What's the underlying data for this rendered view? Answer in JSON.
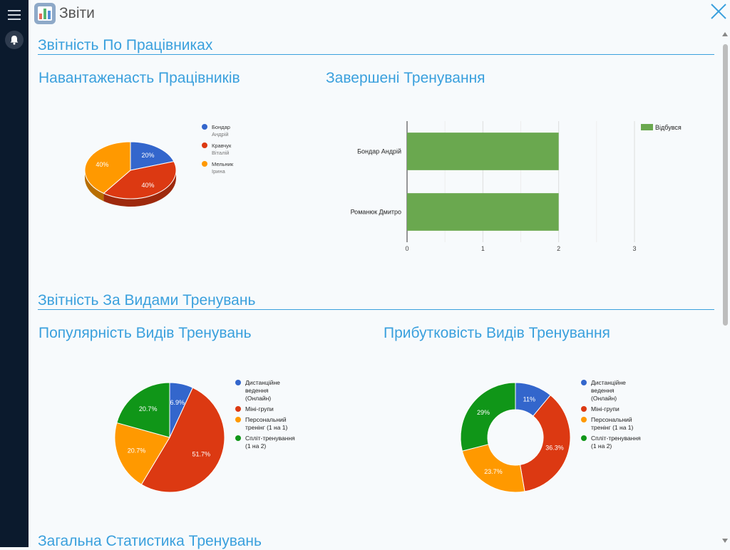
{
  "app": {
    "title": "Звіти"
  },
  "sections": {
    "employees": "Звітність По Працівниках",
    "training_types": "Звітність За Видами Тренувань",
    "general": "Загальна Статистика Тренувань"
  },
  "charts": {
    "workload": {
      "title": "Навантаженасть Працівників"
    },
    "completed": {
      "title": "Завершені Тренування"
    },
    "popularity": {
      "title": "Популярність Видів Тренувань"
    },
    "profitability": {
      "title": "Прибутковість Видів Тренування"
    }
  },
  "colors": {
    "blue": "#3366cc",
    "red": "#dc3912",
    "orange": "#ff9900",
    "green": "#109618",
    "bar_green": "#6aa84f",
    "accent": "#3aa0dd",
    "sidebar": "#0b1a2d"
  },
  "icons": {
    "menu": "hamburger-icon",
    "bell": "bell-icon",
    "close": "close-icon",
    "app": "bar-chart-icon"
  },
  "chart_data": [
    {
      "type": "pie",
      "title": "Навантаженасть Працівників",
      "categories": [
        "Бондар Андрій",
        "Кравчук Віталій",
        "Мельник Ірина"
      ],
      "values": [
        20,
        40,
        40
      ],
      "value_labels": [
        "20%",
        "40%",
        "40%"
      ],
      "colors": [
        "#3366cc",
        "#dc3912",
        "#ff9900"
      ],
      "legend_lines": [
        [
          "Бондар",
          "Андрій"
        ],
        [
          "Кравчук",
          "Віталій"
        ],
        [
          "Мельник",
          "Ірина"
        ]
      ],
      "legend": "right",
      "is3d": true
    },
    {
      "type": "bar",
      "orientation": "horizontal",
      "title": "Завершені Тренування",
      "categories": [
        "Бондар Андрій",
        "Романюк Дмитро"
      ],
      "series": [
        {
          "name": "Відбувся",
          "values": [
            2,
            2
          ],
          "color": "#6aa84f"
        }
      ],
      "xticks": [
        "0",
        "1",
        "2",
        "3"
      ],
      "xlim": [
        0,
        3
      ],
      "grid": true,
      "legend": "top-right"
    },
    {
      "type": "pie",
      "title": "Популярність Видів Тренувань",
      "categories": [
        "Дистанційне ведення (Онлайн)",
        "Міні-групи",
        "Персональний тренінг (1 на 1)",
        "Спліт-тренування (1 на 2)"
      ],
      "values": [
        6.9,
        51.7,
        20.7,
        20.7
      ],
      "value_labels": [
        "6.9%",
        "51.7%",
        "20.7%",
        "20.7%"
      ],
      "colors": [
        "#3366cc",
        "#dc3912",
        "#ff9900",
        "#109618"
      ],
      "legend_lines": [
        [
          "Дистанційне",
          "ведення",
          "(Онлайн)"
        ],
        [
          "Міні-групи"
        ],
        [
          "Персональний",
          "тренінг (1 на 1)"
        ],
        [
          "Спліт-тренування",
          "(1 на 2)"
        ]
      ],
      "legend": "right"
    },
    {
      "type": "pie",
      "donut": true,
      "title": "Прибутковість Видів Тренування",
      "categories": [
        "Дистанційне ведення (Онлайн)",
        "Міні-групи",
        "Персональний тренінг (1 на 1)",
        "Спліт-тренування (1 на 2)"
      ],
      "values": [
        11,
        36.3,
        23.7,
        29
      ],
      "value_labels": [
        "11%",
        "36.3%",
        "23.7%",
        "29%"
      ],
      "colors": [
        "#3366cc",
        "#dc3912",
        "#ff9900",
        "#109618"
      ],
      "legend_lines": [
        [
          "Дистанційне",
          "ведення",
          "(Онлайн)"
        ],
        [
          "Міні-групи"
        ],
        [
          "Персональний",
          "тренінг (1 на 1)"
        ],
        [
          "Спліт-тренування",
          "(1 на 2)"
        ]
      ],
      "legend": "right"
    }
  ]
}
